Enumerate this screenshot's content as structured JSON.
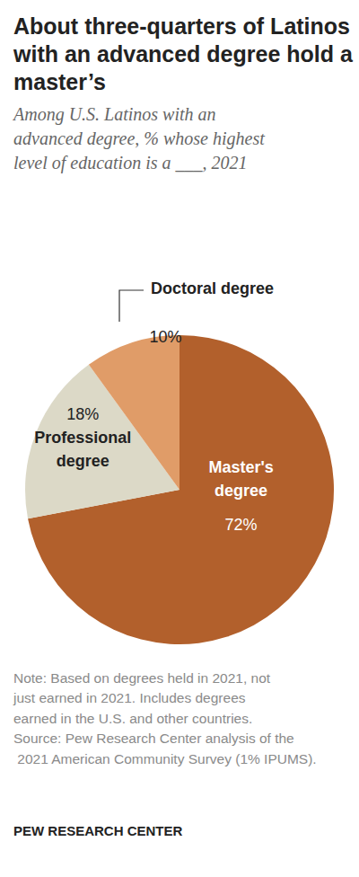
{
  "chart_data": {
    "type": "pie",
    "title": "About three-quarters of Latinos with an advanced degree hold a master’s",
    "subtitle": "Among U.S. Latinos with an advanced degree, % whose highest level of education is a ___, 2021",
    "categories": [
      "Master's degree",
      "Professional degree",
      "Doctoral degree"
    ],
    "values": [
      72,
      18,
      10
    ],
    "value_labels": [
      "72%",
      "18%",
      "10%"
    ],
    "colors": [
      "#b2602c",
      "#dcd9c7",
      "#e09c68"
    ],
    "data_labels": true,
    "note": "Note: Based on degrees held in 2021, not just earned in 2021. Includes degrees earned in the U.S. and other countries.",
    "source": "Source: Pew Research Center analysis of the 2021 American Community Survey (1% IPUMS).",
    "credit": "PEW RESEARCH CENTER"
  }
}
